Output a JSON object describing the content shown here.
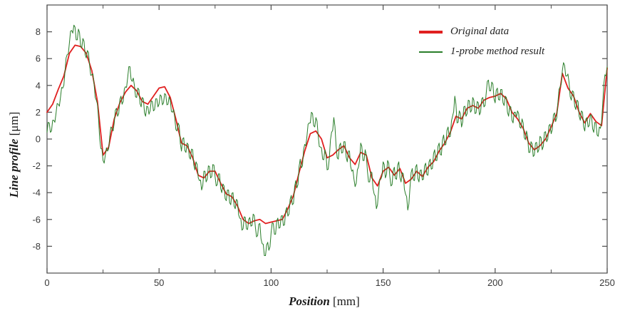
{
  "y_axis": {
    "title_main": "Line profile",
    "title_unit": " [μm]"
  },
  "x_axis": {
    "title_main": "Position",
    "title_unit": " [mm]"
  },
  "legend": {
    "items": [
      {
        "label": "Original data",
        "color": "#e02020"
      },
      {
        "label": "1-probe method result",
        "color": "#2a7e2a"
      }
    ]
  },
  "style": {
    "background": "#ffffff",
    "frame_color": "#4d4d4d",
    "tick_label_color": "#383838"
  },
  "chart_data": {
    "type": "line",
    "title": "",
    "xlabel": "Position [mm]",
    "ylabel": "Line profile [μm]",
    "xlim": [
      0,
      250
    ],
    "ylim": [
      -10,
      10
    ],
    "x_ticks": [
      0,
      50,
      100,
      150,
      200,
      250
    ],
    "x_minor_ticks": [
      25,
      75,
      125,
      175,
      225
    ],
    "y_ticks": [
      -8,
      -6,
      -4,
      -2,
      0,
      2,
      4,
      6,
      8
    ],
    "grid": false,
    "legend_position": "top-right",
    "series": [
      {
        "name": "Original data",
        "color": "#e02020",
        "stroke_width": 1.8,
        "x_start": 0,
        "x_step": 2.5,
        "midpoint_jitter": 0,
        "values": [
          2.0,
          2.6,
          3.7,
          4.7,
          6.4,
          7.0,
          6.9,
          6.4,
          5.1,
          2.8,
          -1.2,
          -0.6,
          1.5,
          2.7,
          3.5,
          4.0,
          3.6,
          2.8,
          2.6,
          3.2,
          3.8,
          3.9,
          3.1,
          1.5,
          -0.3,
          -0.5,
          -1.4,
          -2.7,
          -2.9,
          -2.4,
          -2.4,
          -3.3,
          -4.1,
          -4.3,
          -5.0,
          -6.0,
          -6.3,
          -6.1,
          -6.0,
          -6.3,
          -6.2,
          -6.1,
          -6.0,
          -5.2,
          -4.2,
          -2.5,
          -0.9,
          0.4,
          0.6,
          0.0,
          -1.4,
          -1.2,
          -0.8,
          -0.5,
          -1.4,
          -1.9,
          -1.0,
          -1.2,
          -2.9,
          -3.5,
          -2.4,
          -2.1,
          -2.7,
          -2.2,
          -3.3,
          -3.0,
          -2.4,
          -2.8,
          -2.1,
          -1.7,
          -0.9,
          -0.3,
          0.5,
          1.7,
          1.5,
          2.3,
          2.5,
          2.3,
          2.9,
          3.1,
          3.2,
          3.4,
          3.0,
          2.0,
          1.5,
          0.8,
          -0.3,
          -0.8,
          -0.5,
          0.0,
          0.9,
          1.9,
          4.9,
          3.8,
          3.2,
          2.0,
          1.2,
          1.9,
          1.3,
          1.0,
          5.3
        ]
      },
      {
        "name": "1-probe method result",
        "color": "#2a7e2a",
        "stroke_width": 1,
        "x_start": 0,
        "x_step": 1,
        "midpoint_jitter": 0.4,
        "values": [
          0.5,
          1.2,
          0.6,
          1.4,
          1.9,
          2.6,
          3.1,
          3.8,
          5.0,
          6.3,
          7.2,
          8.1,
          8.5,
          7.4,
          8.2,
          6.9,
          7.5,
          6.3,
          6.6,
          5.5,
          4.8,
          4.1,
          2.9,
          1.5,
          -0.7,
          -1.6,
          -1.2,
          -0.9,
          0.2,
          0.8,
          1.2,
          2.3,
          1.9,
          3.2,
          2.8,
          3.9,
          4.6,
          5.4,
          4.3,
          4.0,
          3.1,
          3.7,
          2.4,
          3.0,
          1.7,
          2.4,
          2.1,
          2.8,
          2.2,
          3.0,
          2.6,
          3.2,
          2.7,
          3.3,
          2.6,
          2.9,
          2.0,
          1.6,
          0.6,
          1.0,
          -0.9,
          0.1,
          -1.0,
          -0.4,
          -1.5,
          -0.8,
          -2.3,
          -1.9,
          -3.1,
          -3.8,
          -2.4,
          -3.2,
          -2.0,
          -2.9,
          -1.9,
          -2.8,
          -3.4,
          -2.6,
          -4.0,
          -3.5,
          -4.6,
          -3.8,
          -4.9,
          -4.0,
          -5.2,
          -4.6,
          -5.9,
          -6.8,
          -5.8,
          -6.7,
          -6.0,
          -6.5,
          -5.6,
          -6.6,
          -7.2,
          -6.3,
          -7.8,
          -8.7,
          -7.9,
          -8.3,
          -7.0,
          -6.3,
          -7.1,
          -5.9,
          -6.6,
          -5.7,
          -6.4,
          -5.1,
          -5.6,
          -4.2,
          -4.8,
          -3.1,
          -3.4,
          -1.5,
          -2.0,
          -0.4,
          0.2,
          1.2,
          2.0,
          1.0,
          1.6,
          0.3,
          -0.6,
          -1.5,
          -0.8,
          -2.3,
          -1.4,
          0.5,
          1.6,
          -0.5,
          -1.5,
          -0.3,
          -1.0,
          -0.2,
          -1.7,
          -0.9,
          -2.4,
          -3.0,
          -3.3,
          -2.1,
          -0.3,
          -1.6,
          -0.8,
          -2.4,
          -3.2,
          -2.5,
          -4.1,
          -5.2,
          -3.8,
          -3.0,
          -1.7,
          -2.9,
          -1.6,
          -2.8,
          -3.4,
          -2.1,
          -3.0,
          -1.7,
          -3.2,
          -2.6,
          -4.1,
          -5.3,
          -3.6,
          -2.2,
          -3.1,
          -1.9,
          -3.2,
          -2.3,
          -3.0,
          -1.8,
          -2.7,
          -1.5,
          -2.2,
          -0.8,
          -1.6,
          -0.3,
          -1.2,
          0.3,
          -0.4,
          0.9,
          0.2,
          1.7,
          3.2,
          1.2,
          2.1,
          0.9,
          2.4,
          1.7,
          2.9,
          2.0,
          3.1,
          1.9,
          2.8,
          1.8,
          3.0,
          2.4,
          3.4,
          4.4,
          3.6,
          4.1,
          2.7,
          3.8,
          2.9,
          3.7,
          2.5,
          3.1,
          1.7,
          2.4,
          1.2,
          2.0,
          2.1,
          0.9,
          1.5,
          0.1,
          0.6,
          -1.0,
          -0.2,
          -1.3,
          -0.3,
          -1.0,
          0.2,
          -0.8,
          0.5,
          -0.2,
          1.0,
          0.4,
          1.8,
          1.3,
          2.7,
          3.9,
          5.1,
          5.5,
          4.7,
          4.2,
          2.9,
          3.5,
          2.2,
          2.8,
          1.4,
          2.0,
          0.6,
          1.6,
          1.0,
          1.8,
          0.5,
          1.2,
          0.2,
          0.8,
          2.6,
          4.8,
          5.4
        ]
      }
    ]
  }
}
